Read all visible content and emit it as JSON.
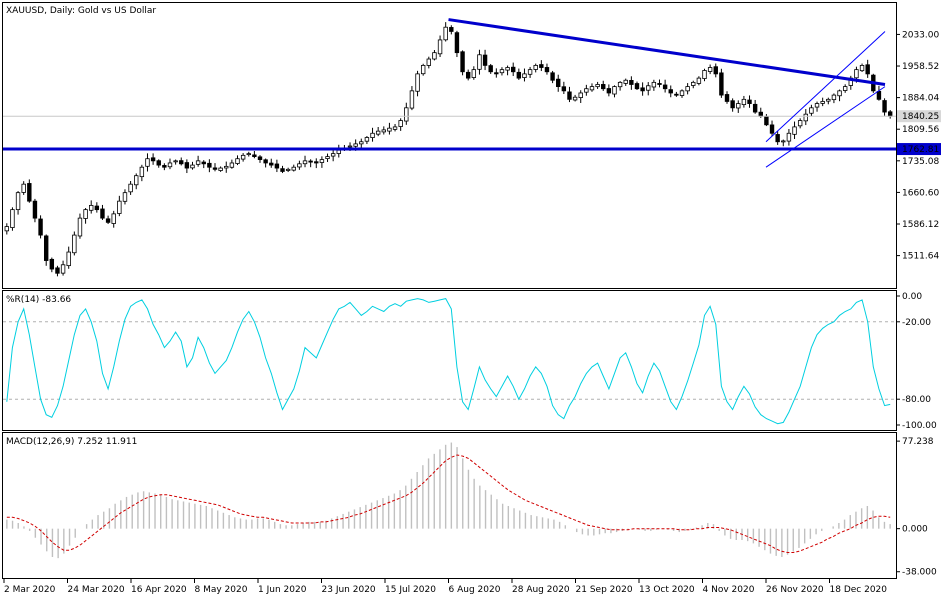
{
  "chart_data": {
    "type": "candlestick",
    "price_panel": {
      "title": "XAUUSD, Daily:  Gold vs US Dollar",
      "y_ticks": [
        "2033.00",
        "1958.52",
        "1884.04",
        "1809.56",
        "1735.08",
        "1660.60",
        "1586.12",
        "1511.64"
      ],
      "ylim": [
        1440,
        2100
      ],
      "current_price": "1840.25",
      "support_level": "1762.81",
      "support_value": 1762.81,
      "grid": false,
      "trendline_resistance": {
        "from": {
          "x": "6 Aug 2020",
          "y": 2068
        },
        "to": {
          "x": "4 Jan 2021",
          "y": 1915
        }
      },
      "channel": {
        "lower_from": {
          "x": "26 Nov 2020",
          "y": 1720
        },
        "lower_to": {
          "x": "4 Jan 2021",
          "y": 1910
        },
        "upper_from": {
          "x": "26 Nov 2020",
          "y": 1780
        },
        "upper_to": {
          "x": "4 Jan 2021",
          "y": 2040
        }
      },
      "closes": [
        1580,
        1620,
        1660,
        1680,
        1640,
        1600,
        1560,
        1500,
        1480,
        1470,
        1490,
        1520,
        1560,
        1600,
        1620,
        1630,
        1620,
        1600,
        1590,
        1610,
        1640,
        1660,
        1680,
        1700,
        1720,
        1740,
        1735,
        1725,
        1720,
        1730,
        1735,
        1728,
        1718,
        1725,
        1735,
        1728,
        1720,
        1715,
        1718,
        1722,
        1730,
        1740,
        1748,
        1752,
        1745,
        1738,
        1730,
        1725,
        1718,
        1710,
        1715,
        1720,
        1728,
        1735,
        1732,
        1730,
        1738,
        1745,
        1752,
        1760,
        1765,
        1770,
        1775,
        1780,
        1790,
        1800,
        1805,
        1808,
        1812,
        1815,
        1830,
        1860,
        1900,
        1940,
        1960,
        1975,
        1990,
        2020,
        2050,
        2040,
        1990,
        1945,
        1930,
        1950,
        1985,
        1960,
        1945,
        1940,
        1950,
        1955,
        1945,
        1930,
        1940,
        1950,
        1960,
        1955,
        1945,
        1925,
        1910,
        1900,
        1880,
        1885,
        1895,
        1905,
        1910,
        1915,
        1905,
        1895,
        1910,
        1920,
        1925,
        1915,
        1905,
        1900,
        1912,
        1920,
        1915,
        1905,
        1895,
        1890,
        1900,
        1910,
        1920,
        1930,
        1948,
        1955,
        1940,
        1890,
        1875,
        1860,
        1870,
        1880,
        1870,
        1850,
        1840,
        1820,
        1800,
        1780,
        1782,
        1800,
        1815,
        1830,
        1845,
        1860,
        1870,
        1875,
        1880,
        1890,
        1900,
        1910,
        1930,
        1950,
        1960,
        1940,
        1900,
        1880,
        1850,
        1840
      ]
    },
    "wr_panel": {
      "title": "%R(14) -83.66",
      "y_ticks": [
        "0.00",
        "-20.00",
        "-80.00",
        "-100.00"
      ],
      "ylim": [
        -100,
        0
      ],
      "levels": [
        -20,
        -80
      ],
      "values": [
        -82,
        -40,
        -20,
        -10,
        -30,
        -55,
        -80,
        -92,
        -94,
        -85,
        -70,
        -50,
        -30,
        -15,
        -10,
        -20,
        -35,
        -60,
        -72,
        -55,
        -35,
        -18,
        -8,
        -5,
        -3,
        -10,
        -22,
        -30,
        -40,
        -35,
        -28,
        -35,
        -55,
        -48,
        -32,
        -40,
        -52,
        -60,
        -55,
        -50,
        -40,
        -28,
        -18,
        -12,
        -20,
        -32,
        -48,
        -60,
        -75,
        -88,
        -80,
        -72,
        -58,
        -40,
        -44,
        -48,
        -38,
        -28,
        -18,
        -10,
        -8,
        -5,
        -10,
        -15,
        -12,
        -8,
        -10,
        -12,
        -8,
        -6,
        -8,
        -4,
        -3,
        -2,
        -3,
        -5,
        -4,
        -3,
        -2,
        -10,
        -55,
        -82,
        -88,
        -72,
        -55,
        -65,
        -72,
        -78,
        -70,
        -62,
        -70,
        -80,
        -72,
        -62,
        -55,
        -60,
        -70,
        -85,
        -92,
        -95,
        -85,
        -78,
        -68,
        -60,
        -55,
        -52,
        -62,
        -72,
        -60,
        -48,
        -44,
        -55,
        -68,
        -75,
        -62,
        -52,
        -58,
        -70,
        -82,
        -88,
        -78,
        -66,
        -52,
        -38,
        -15,
        -8,
        -22,
        -70,
        -82,
        -88,
        -78,
        -70,
        -76,
        -86,
        -92,
        -95,
        -97,
        -99,
        -98,
        -90,
        -80,
        -70,
        -55,
        -40,
        -30,
        -25,
        -22,
        -20,
        -15,
        -12,
        -10,
        -5,
        -3,
        -20,
        -55,
        -72,
        -85,
        -84
      ]
    },
    "macd_panel": {
      "title": "MACD(12,26,9) 7.252 11.911",
      "y_ticks": [
        "77.238",
        "0.000",
        "-38.000"
      ],
      "ylim": [
        -40,
        80
      ],
      "histogram": [
        8,
        7,
        5,
        2,
        -2,
        -8,
        -14,
        -20,
        -25,
        -26,
        -22,
        -15,
        -8,
        0,
        4,
        8,
        12,
        15,
        18,
        22,
        25,
        28,
        30,
        32,
        33,
        32,
        31,
        30,
        28,
        26,
        25,
        24,
        23,
        22,
        21,
        20,
        18,
        16,
        14,
        12,
        10,
        9,
        8,
        8,
        9,
        9,
        8,
        6,
        4,
        3,
        3,
        4,
        5,
        6,
        6,
        6,
        7,
        9,
        11,
        13,
        15,
        17,
        19,
        21,
        23,
        25,
        27,
        29,
        31,
        34,
        38,
        44,
        50,
        56,
        62,
        66,
        70,
        74,
        76,
        72,
        62,
        52,
        44,
        38,
        34,
        30,
        26,
        22,
        20,
        18,
        16,
        14,
        12,
        11,
        10,
        9,
        8,
        6,
        3,
        0,
        -3,
        -5,
        -6,
        -6,
        -5,
        -4,
        -4,
        -3,
        -2,
        -1,
        0,
        -1,
        -2,
        -2,
        -1,
        0,
        -1,
        -2,
        -3,
        -2,
        -1,
        1,
        3,
        5,
        4,
        -2,
        -6,
        -9,
        -10,
        -10,
        -11,
        -13,
        -16,
        -19,
        -22,
        -24,
        -25,
        -23,
        -20,
        -17,
        -13,
        -9,
        -5,
        -2,
        0,
        2,
        5,
        8,
        12,
        15,
        18,
        20,
        16,
        10,
        6,
        4
      ],
      "signal": [
        10,
        10,
        9,
        7,
        5,
        2,
        -2,
        -7,
        -12,
        -16,
        -19,
        -19,
        -17,
        -14,
        -10,
        -6,
        -2,
        2,
        6,
        10,
        14,
        17,
        20,
        23,
        26,
        28,
        29,
        30,
        30,
        29,
        28,
        27,
        26,
        25,
        24,
        23,
        22,
        21,
        19,
        17,
        15,
        13,
        12,
        11,
        10,
        10,
        9,
        8,
        7,
        6,
        5,
        5,
        5,
        5,
        5,
        6,
        6,
        7,
        8,
        9,
        10,
        12,
        13,
        15,
        17,
        19,
        21,
        23,
        25,
        27,
        29,
        32,
        36,
        40,
        45,
        50,
        55,
        60,
        63,
        65,
        64,
        62,
        58,
        54,
        50,
        46,
        42,
        38,
        34,
        31,
        28,
        25,
        23,
        21,
        19,
        17,
        15,
        13,
        11,
        9,
        7,
        5,
        3,
        2,
        1,
        0,
        -1,
        -1,
        -1,
        -1,
        0,
        0,
        0,
        0,
        0,
        0,
        0,
        0,
        -1,
        -1,
        -1,
        0,
        0,
        1,
        1,
        1,
        0,
        -1,
        -3,
        -5,
        -7,
        -9,
        -11,
        -13,
        -15,
        -18,
        -20,
        -21,
        -21,
        -20,
        -18,
        -16,
        -14,
        -12,
        -9,
        -7,
        -4,
        -2,
        0,
        3,
        5,
        8,
        10,
        11,
        11,
        10
      ]
    },
    "x_tick_labels": [
      "2 Mar 2020",
      "24 Mar 2020",
      "16 Apr 2020",
      "8 May 2020",
      "1 Jun 2020",
      "23 Jun 2020",
      "15 Jul 2020",
      "6 Aug 2020",
      "28 Aug 2020",
      "21 Sep 2020",
      "13 Oct 2020",
      "4 Nov 2020",
      "26 Nov 2020",
      "18 Dec 2020"
    ],
    "colors": {
      "candles": "#000000",
      "trendlines": "#0000cc",
      "channel": "#0000ff",
      "wr_line": "#00cfe0",
      "macd_hist": "#c0c0c0",
      "macd_signal": "#d00000",
      "level_lines": "#b0b0b0",
      "support_label_bg": "#0000cc",
      "price_label_bg": "#d8d8d8"
    }
  }
}
